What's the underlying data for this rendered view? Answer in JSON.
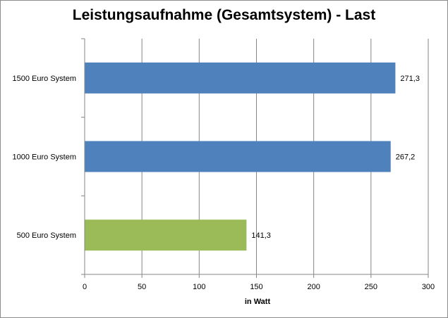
{
  "chart_data": {
    "type": "bar",
    "orientation": "horizontal",
    "title": "Leistungsaufnahme (Gesamtsystem) - Last",
    "xlabel": "in Watt",
    "ylabel": "",
    "xlim": [
      0,
      300
    ],
    "ticks": [
      0,
      50,
      100,
      150,
      200,
      250,
      300
    ],
    "tick_labels": [
      "0",
      "50",
      "100",
      "150",
      "200",
      "250",
      "300"
    ],
    "categories": [
      "1500 Euro System",
      "1000 Euro System",
      "500 Euro System"
    ],
    "values": [
      271.3,
      267.2,
      141.3
    ],
    "value_labels": [
      "271,3",
      "267,2",
      "141,3"
    ],
    "colors": [
      "#4f81bd",
      "#4f81bd",
      "#9bbb59"
    ],
    "grid": true,
    "legend": "none"
  }
}
